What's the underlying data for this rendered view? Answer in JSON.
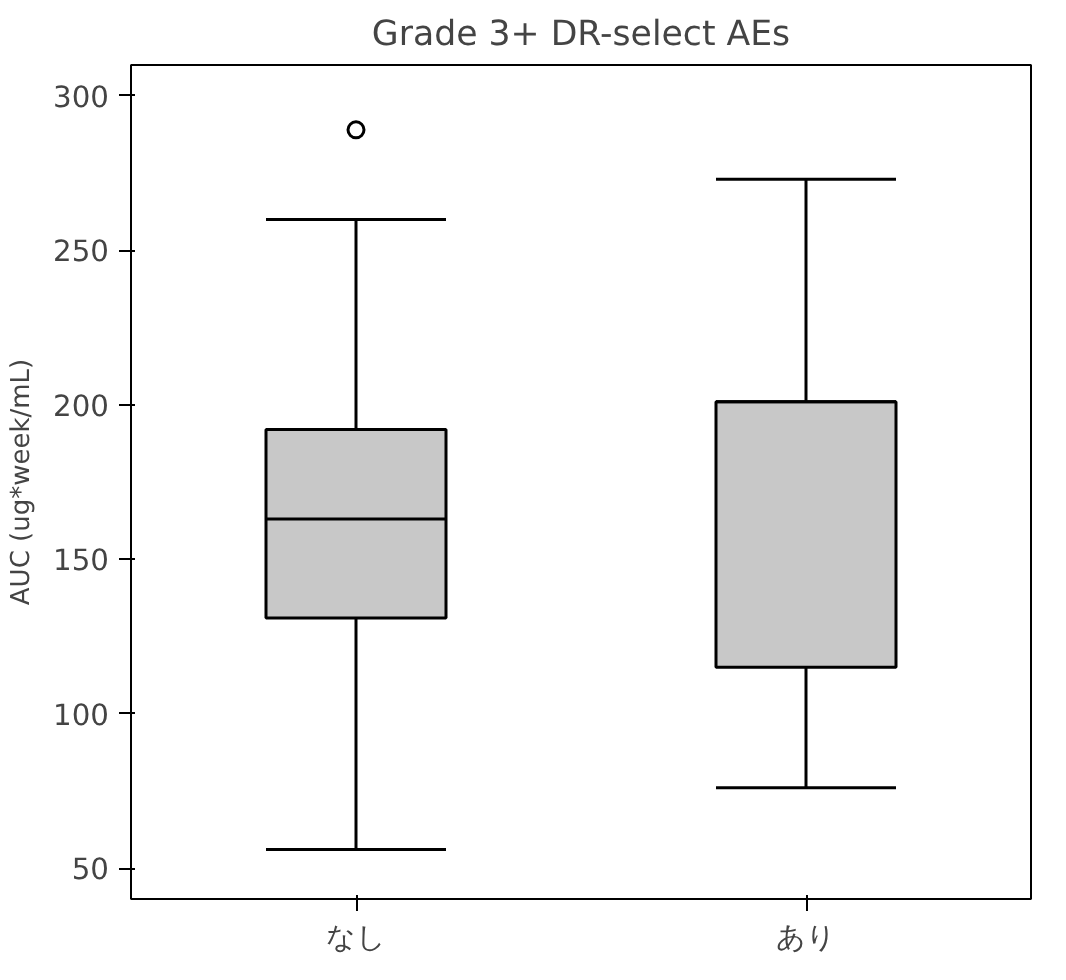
{
  "chart_data": {
    "type": "box",
    "title": "Grade 3+ DR-select AEs",
    "ylabel": "AUC (ug*week/mL)",
    "categories": [
      "なし",
      "あり"
    ],
    "boxes": [
      {
        "low": 56,
        "q1": 131,
        "median": 163,
        "q3": 192,
        "high": 260,
        "outliers": [
          289
        ]
      },
      {
        "low": 76,
        "q1": 115,
        "median": 201,
        "q3": 201,
        "high": 273
      }
    ],
    "color": "#c8c8c8",
    "ylim": [
      40,
      310
    ],
    "yticks": [
      50,
      100,
      150,
      200,
      250,
      300
    ],
    "grid": false
  }
}
